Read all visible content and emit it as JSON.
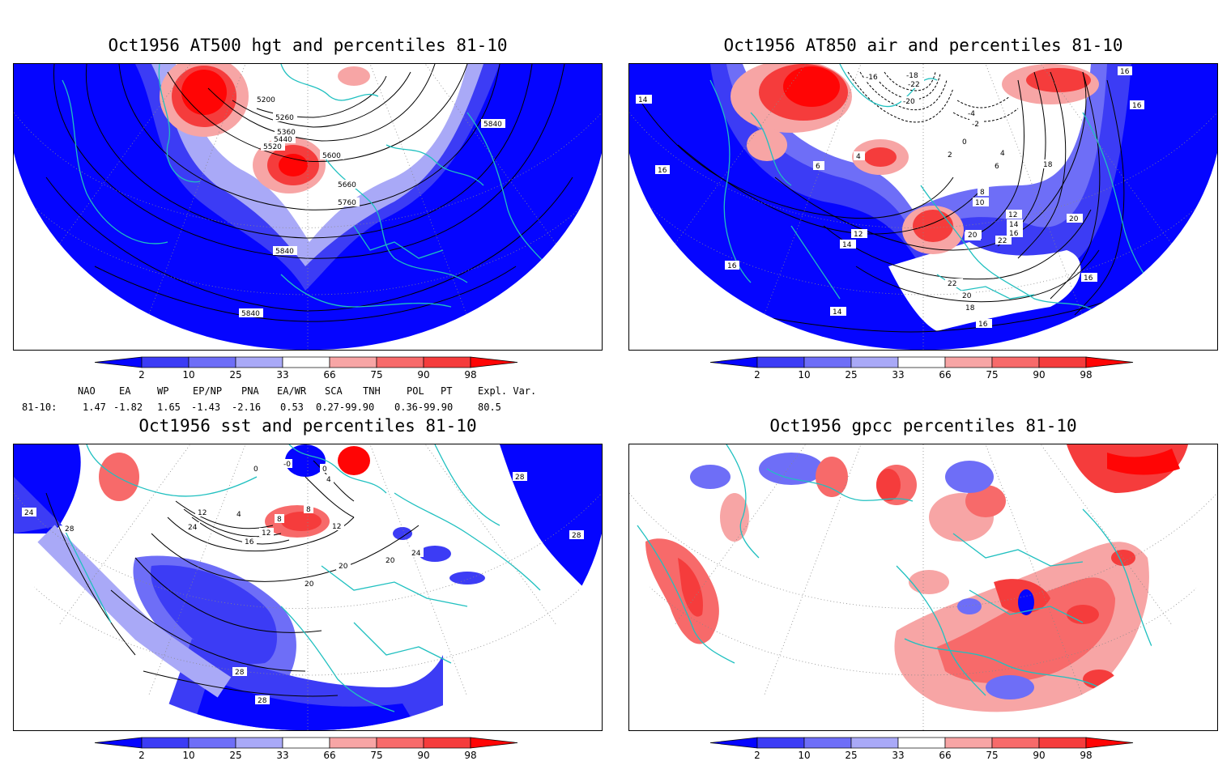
{
  "panels": [
    {
      "id": "p1",
      "title": "Oct1956 AT500 hgt and percentiles 81-10",
      "contour_labels": [
        "5200",
        "5260",
        "5360",
        "5440",
        "5520",
        "5600",
        "5660",
        "5760",
        "5840",
        "5840",
        "5840"
      ]
    },
    {
      "id": "p2",
      "title": "Oct1956 AT850 air and percentiles 81-10",
      "contour_labels": [
        "14",
        "16",
        "16",
        "16",
        "16",
        "-16",
        "-18",
        "-22",
        "-20",
        "4",
        "6",
        "-4",
        "-2",
        "0",
        "2",
        "4",
        "6",
        "8",
        "10",
        "12",
        "14",
        "16",
        "18",
        "20",
        "22",
        "22",
        "20",
        "18",
        "16",
        "14",
        "12",
        "14",
        "16",
        "18",
        "20",
        "22"
      ]
    },
    {
      "id": "p3",
      "title": "Oct1956 sst and percentiles 81-10",
      "contour_labels": [
        "0",
        "-0",
        "0",
        "4",
        "12",
        "24",
        "4",
        "8",
        "8",
        "12",
        "16",
        "12",
        "20",
        "20",
        "20",
        "24",
        "28",
        "24",
        "28",
        "28",
        "28",
        "28"
      ]
    },
    {
      "id": "p4",
      "title": "Oct1956 gpcc percentiles 81-10",
      "contour_labels": []
    }
  ],
  "colorbar": {
    "labels": [
      "2",
      "10",
      "25",
      "33",
      "66",
      "75",
      "90",
      "98"
    ],
    "colors": {
      "blue_dark": "#0505ff",
      "blue_mid": "#3c3cf5",
      "blue_light": "#6e6ef7",
      "blue_pale": "#a9a9f7",
      "white": "#ffffff",
      "red_pale": "#f7a5a5",
      "red_light": "#f76a6a",
      "red_mid": "#f53c3c",
      "red_dark": "#ff0505"
    }
  },
  "teleconnections": {
    "headers": [
      "NAO",
      "EA",
      "WP",
      "EP/NP",
      "PNA",
      "EA/WR",
      "SCA",
      "TNH",
      "POL",
      "PT",
      "Expl. Var."
    ],
    "row_label": "81-10:",
    "values": [
      "1.47",
      "-1.82",
      "1.65",
      "-1.43",
      "-2.16",
      "0.53",
      "0.27-99.90",
      "",
      "0.36-99.90",
      "",
      "80.5"
    ]
  },
  "map_colors": {
    "coast": "#20c0c0",
    "grid": "#888888",
    "contour": "#000000"
  }
}
